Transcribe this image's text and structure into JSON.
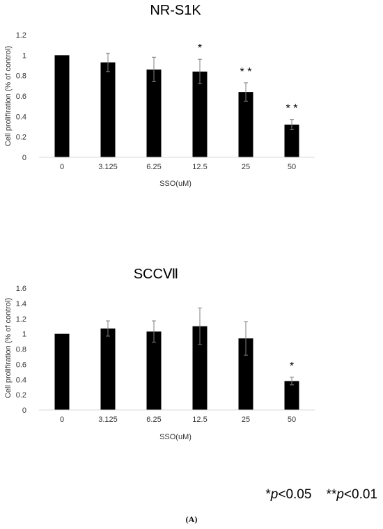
{
  "chart_data": [
    {
      "type": "bar",
      "title": "NR-S1K",
      "xlabel": "SSO(uM)",
      "ylabel": "Cell prolifiration (% of control)",
      "categories": [
        "0",
        "3.125",
        "6.25",
        "12.5",
        "25",
        "50"
      ],
      "values": [
        1.0,
        0.93,
        0.86,
        0.84,
        0.64,
        0.32
      ],
      "errors": [
        0.0,
        0.09,
        0.12,
        0.12,
        0.09,
        0.05
      ],
      "significance": [
        "",
        "",
        "",
        "*",
        "* *",
        "* *"
      ],
      "ylim": [
        0,
        1.2
      ],
      "yticks": [
        "0",
        "0.2",
        "0.4",
        "0.6",
        "0.8",
        "1",
        "1.2"
      ],
      "grid": false,
      "bar_color": "#000000"
    },
    {
      "type": "bar",
      "title": "SCCⅦ",
      "xlabel": "SSO(uM)",
      "ylabel": "Cell prolifiration (% of control)",
      "categories": [
        "0",
        "3.125",
        "6.25",
        "12.5",
        "25",
        "50"
      ],
      "values": [
        1.0,
        1.07,
        1.03,
        1.1,
        0.94,
        0.38
      ],
      "errors": [
        0.0,
        0.1,
        0.14,
        0.24,
        0.22,
        0.05
      ],
      "significance": [
        "",
        "",
        "",
        "",
        "",
        "*"
      ],
      "ylim": [
        0,
        1.6
      ],
      "yticks": [
        "0",
        "0.2",
        "0.4",
        "0.6",
        "0.8",
        "1",
        "1.2",
        "1.4",
        "1.6"
      ],
      "grid": false,
      "bar_color": "#000000"
    }
  ],
  "legend": {
    "sig1_prefix": "*",
    "sig1_p": "p",
    "sig1_rest": "<0.05",
    "sig2_prefix": "**",
    "sig2_p": "p",
    "sig2_rest": "<0.01"
  },
  "panel_label": "(A)"
}
